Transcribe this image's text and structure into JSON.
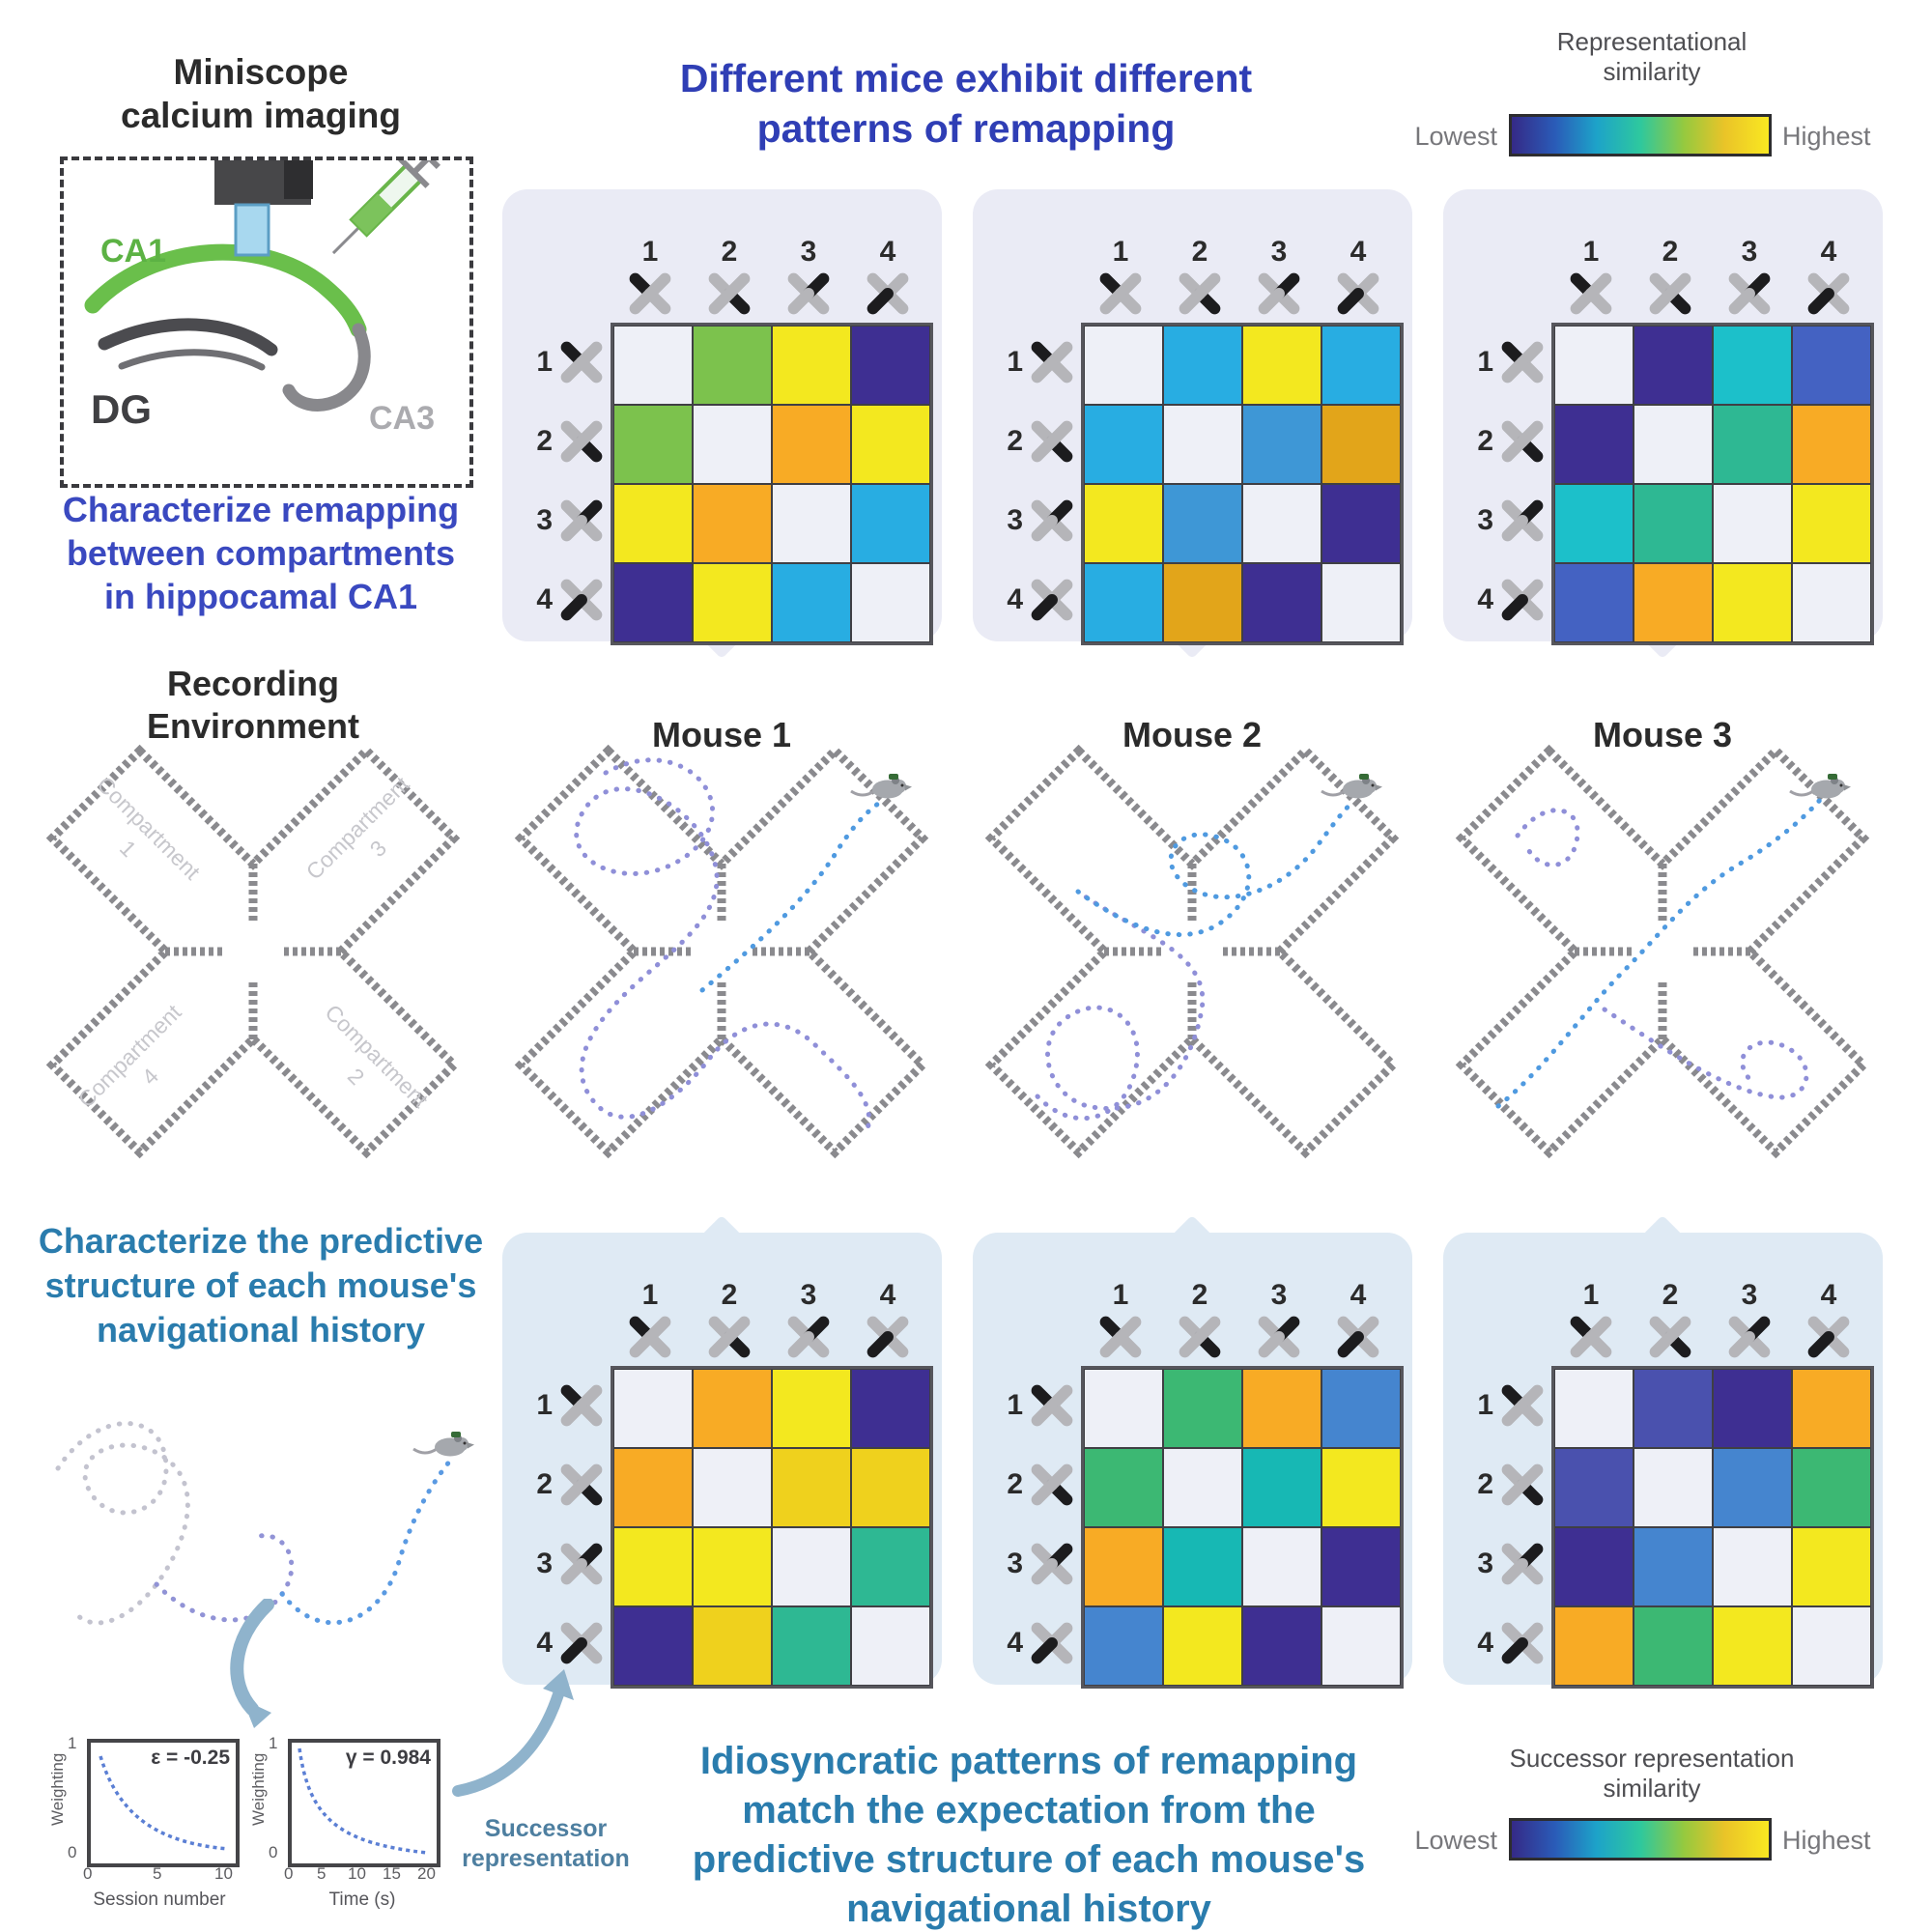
{
  "titles": {
    "miniscope": "Miniscope\ncalcium imaging",
    "main_top": "Different mice exhibit different\npatterns of remapping",
    "recording_env": "Recording\nEnvironment",
    "characterize_remapping": "Characterize remapping\nbetween compartments\nin hippocamal CA1",
    "characterize_predictive": "Characterize the predictive\nstructure of each mouse's\nnavigational history",
    "bottom_heading": "Idiosyncratic patterns of remapping\nmatch the expectation from the\npredictive structure of each mouse's\nnavigational history",
    "successor_label": "Successor\nrepresentation"
  },
  "anatomy": {
    "ca1": "CA1",
    "dg": "DG",
    "ca3": "CA3"
  },
  "mice": [
    "Mouse 1",
    "Mouse 2",
    "Mouse 3"
  ],
  "recording": {
    "compartments": [
      {
        "word": "Compartment",
        "num": "1"
      },
      {
        "word": "Compartment",
        "num": "3"
      },
      {
        "word": "Compartment",
        "num": "4"
      },
      {
        "word": "Compartment",
        "num": "2"
      }
    ]
  },
  "colorbars": {
    "top": {
      "title": "Representational\nsimilarity",
      "lowest": "Lowest",
      "highest": "Highest"
    },
    "bottom": {
      "title": "Successor representation\nsimilarity",
      "lowest": "Lowest",
      "highest": "Highest"
    },
    "gradient": [
      "#352a87",
      "#2a5cb8",
      "#1da3c9",
      "#2ec89e",
      "#95c93f",
      "#eac428",
      "#f9e821"
    ]
  },
  "plots": [
    {
      "ylabel": "Weighting",
      "xlabel": "Session number",
      "annotation": "ε = -0.25",
      "yticks": [
        "1",
        "0"
      ],
      "xticks": [
        "0",
        "5",
        "10"
      ]
    },
    {
      "ylabel": "Weighting",
      "xlabel": "Time (s)",
      "annotation": "γ = 0.984",
      "yticks": [
        "1",
        "0"
      ],
      "xticks": [
        "0",
        "5",
        "10",
        "15",
        "20"
      ]
    }
  ],
  "matrix_labels": [
    "1",
    "2",
    "3",
    "4"
  ],
  "palette": {
    "D": "#eef0f7",
    "G": "#7cc24d",
    "Y": "#f3e81f",
    "I": "#3e2f92",
    "O": "#f8ab25",
    "C": "#28ade2",
    "B": "#3e97d6",
    "A": "#e2a51a",
    "T": "#1cc0ca",
    "E": "#2eb893",
    "R": "#4462c2",
    "GD": "#efd11d",
    "GN": "#3cb873",
    "SB": "#4585cf",
    "TL": "#17b8b4",
    "SL": "#4a51ae"
  },
  "chart_data": {
    "type": "heatmap",
    "note": "4x4 representational-similarity matrices between maze compartments 1-4; colors encode similarity from Lowest (dark blue) to Highest (yellow); diagonal is empty (self).",
    "categories": [
      "1",
      "2",
      "3",
      "4"
    ],
    "matrices_top_representational": {
      "mouse1": [
        [
          "D",
          "G",
          "Y",
          "I"
        ],
        [
          "G",
          "D",
          "O",
          "Y"
        ],
        [
          "Y",
          "O",
          "D",
          "C"
        ],
        [
          "I",
          "Y",
          "C",
          "D"
        ]
      ],
      "mouse2": [
        [
          "D",
          "C",
          "Y",
          "C"
        ],
        [
          "C",
          "D",
          "B",
          "A"
        ],
        [
          "Y",
          "B",
          "D",
          "I"
        ],
        [
          "C",
          "A",
          "I",
          "D"
        ]
      ],
      "mouse3": [
        [
          "D",
          "I",
          "T",
          "R"
        ],
        [
          "I",
          "D",
          "E",
          "O"
        ],
        [
          "T",
          "E",
          "D",
          "Y"
        ],
        [
          "R",
          "O",
          "Y",
          "D"
        ]
      ]
    },
    "matrices_bottom_successor": {
      "mouse1": [
        [
          "D",
          "O",
          "Y",
          "I"
        ],
        [
          "O",
          "D",
          "GD",
          "GD"
        ],
        [
          "Y",
          "Y",
          "D",
          "E"
        ],
        [
          "I",
          "GD",
          "E",
          "D"
        ]
      ],
      "mouse2": [
        [
          "D",
          "GN",
          "O",
          "SB"
        ],
        [
          "GN",
          "D",
          "TL",
          "Y"
        ],
        [
          "O",
          "TL",
          "D",
          "I"
        ],
        [
          "SB",
          "Y",
          "I",
          "D"
        ]
      ],
      "mouse3": [
        [
          "D",
          "SL",
          "I",
          "O"
        ],
        [
          "SL",
          "D",
          "SB",
          "GN"
        ],
        [
          "I",
          "SB",
          "D",
          "Y"
        ],
        [
          "O",
          "GN",
          "Y",
          "D"
        ]
      ]
    }
  }
}
